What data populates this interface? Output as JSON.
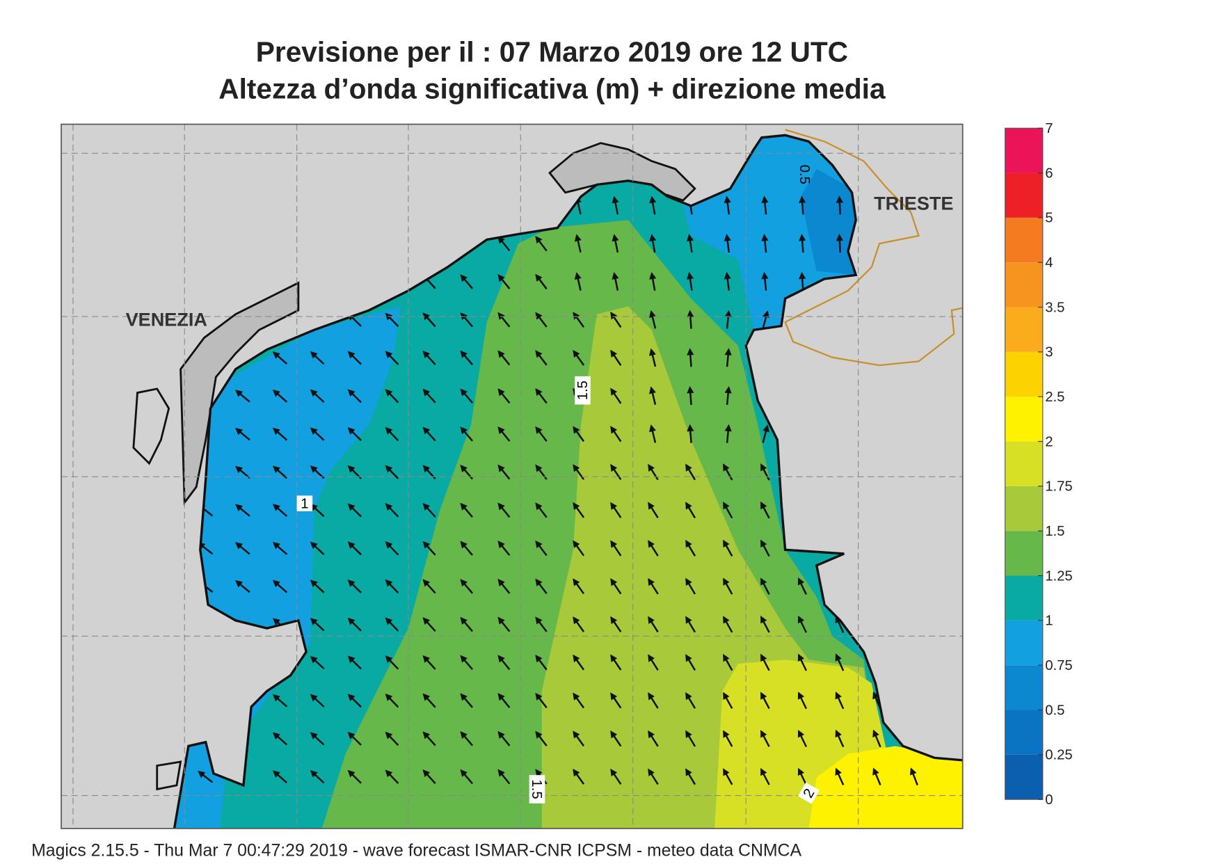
{
  "header": {
    "title": [
      "Previsione per il  :  07   Marzo   2019   ore 12 UTC",
      "Altezza d’onda significativa (m) + direzione media"
    ]
  },
  "map": {
    "cities": [
      "VENEZIA",
      "TRIESTE"
    ],
    "contour_labels": [
      "0.5",
      "1.5",
      "1",
      "1.5",
      "2"
    ]
  },
  "colorbar": {
    "ticks": [
      0,
      0.25,
      0.5,
      0.75,
      1,
      1.25,
      1.5,
      1.75,
      2,
      2.5,
      3,
      3.5,
      4,
      5,
      6,
      7
    ],
    "colors": [
      "#0b5fae",
      "#0a73c2",
      "#0b88d0",
      "#12a0e0",
      "#08aaa3",
      "#66b84a",
      "#a8c93a",
      "#d7e024",
      "#fff200",
      "#fcd200",
      "#fbac1c",
      "#f7941f",
      "#f47b20",
      "#ec2026",
      "#ec1459"
    ]
  },
  "footer": "Magics 2.15.5 - Thu Mar  7 00:47:29 2019 - wave forecast  ISMAR-CNR  ICPSM - meteo data   CNMCA"
}
